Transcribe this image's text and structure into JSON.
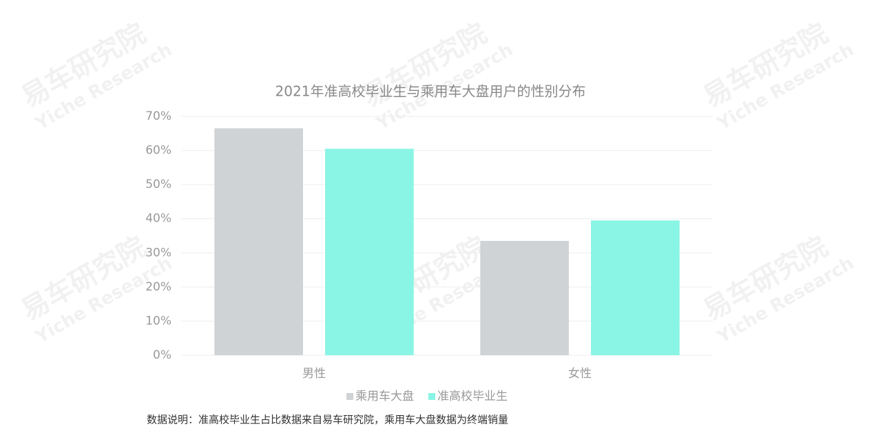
{
  "chart_data": {
    "type": "bar",
    "title": "2021年准高校毕业生与乘用车大盘用户的性别分布",
    "categories": [
      "男性",
      "女性"
    ],
    "series": [
      {
        "name": "乘用车大盘",
        "color": "#d0d3d6",
        "values": [
          66.5,
          33.5
        ]
      },
      {
        "name": "准高校毕业生",
        "color": "#8af5e4",
        "values": [
          60.5,
          39.5
        ]
      }
    ],
    "ylim": [
      0,
      70
    ],
    "yticks": [
      {
        "value": 0,
        "label": "0%"
      },
      {
        "value": 10,
        "label": "10%"
      },
      {
        "value": 20,
        "label": "20%"
      },
      {
        "value": 30,
        "label": "30%"
      },
      {
        "value": 40,
        "label": "40%"
      },
      {
        "value": 50,
        "label": "50%"
      },
      {
        "value": 60,
        "label": "60%"
      },
      {
        "value": 70,
        "label": "70%"
      }
    ],
    "grid": true,
    "legend": "bottom",
    "note": "数据说明：准高校毕业生占比数据来自易车研究院，乘用车大盘数据为终端销量"
  },
  "watermark": {
    "cn": "易车研究院",
    "en": "Yiche Research"
  }
}
